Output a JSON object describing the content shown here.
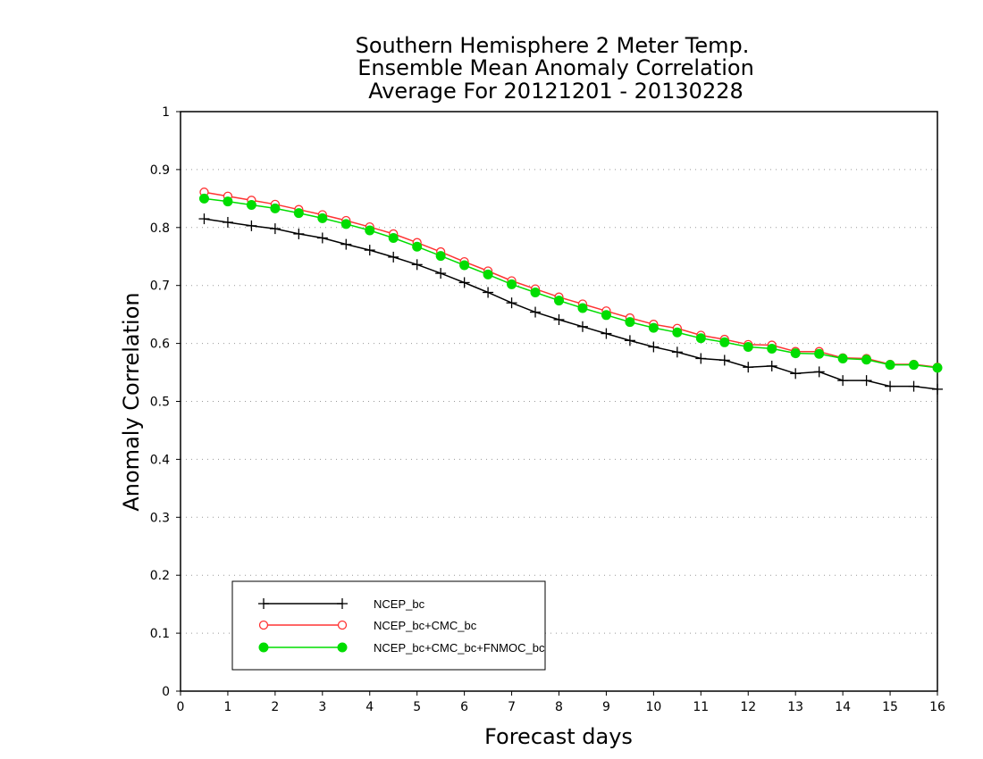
{
  "chart_data": {
    "type": "line",
    "title": [
      "Southern Hemisphere 2 Meter Temp.",
      "Ensemble Mean Anomaly Correlation",
      "Average For 20121201 - 20130228"
    ],
    "xlabel": "Forecast days",
    "ylabel": "Anomaly Correlation",
    "xlim": [
      0,
      16
    ],
    "ylim": [
      0,
      1
    ],
    "xticks": [
      "0",
      "1",
      "2",
      "3",
      "4",
      "5",
      "6",
      "7",
      "8",
      "9",
      "10",
      "11",
      "12",
      "13",
      "14",
      "15",
      "16"
    ],
    "yticks": [
      "0",
      "0.1",
      "0.2",
      "0.3",
      "0.4",
      "0.5",
      "0.6",
      "0.7",
      "0.8",
      "0.9",
      "1"
    ],
    "grid": true,
    "legend_position": "bottom-left",
    "x": [
      0.5,
      1,
      1.5,
      2,
      2.5,
      3,
      3.5,
      4,
      4.5,
      5,
      5.5,
      6,
      6.5,
      7,
      7.5,
      8,
      8.5,
      9,
      9.5,
      10,
      10.5,
      11,
      11.5,
      12,
      12.5,
      13,
      13.5,
      14,
      14.5,
      15,
      15.5,
      16
    ],
    "series": [
      {
        "name": "NCEP_bc",
        "color": "#000000",
        "marker": "plus",
        "values": [
          0.815,
          0.809,
          0.803,
          0.798,
          0.789,
          0.782,
          0.771,
          0.761,
          0.749,
          0.736,
          0.721,
          0.705,
          0.688,
          0.67,
          0.654,
          0.641,
          0.629,
          0.617,
          0.605,
          0.594,
          0.585,
          0.574,
          0.571,
          0.559,
          0.561,
          0.548,
          0.551,
          0.536,
          0.536,
          0.526,
          0.526,
          0.521
        ]
      },
      {
        "name": "NCEP_bc+CMC_bc",
        "color": "#ff3333",
        "marker": "open-circle",
        "values": [
          0.861,
          0.854,
          0.847,
          0.84,
          0.831,
          0.822,
          0.812,
          0.801,
          0.789,
          0.774,
          0.758,
          0.741,
          0.725,
          0.708,
          0.694,
          0.68,
          0.668,
          0.656,
          0.644,
          0.633,
          0.626,
          0.614,
          0.607,
          0.598,
          0.597,
          0.586,
          0.586,
          0.575,
          0.574,
          0.564,
          0.564,
          0.559
        ]
      },
      {
        "name": "NCEP_bc+CMC_bc+FNMOC_bc",
        "color": "#00dd00",
        "marker": "filled-circle",
        "values": [
          0.85,
          0.845,
          0.839,
          0.833,
          0.825,
          0.816,
          0.806,
          0.795,
          0.782,
          0.767,
          0.751,
          0.735,
          0.719,
          0.702,
          0.688,
          0.674,
          0.661,
          0.649,
          0.637,
          0.627,
          0.619,
          0.609,
          0.602,
          0.594,
          0.591,
          0.583,
          0.582,
          0.574,
          0.572,
          0.563,
          0.563,
          0.558
        ]
      }
    ]
  }
}
